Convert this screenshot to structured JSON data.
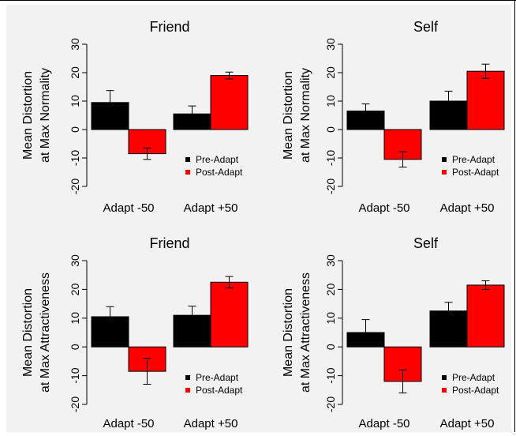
{
  "figure": {
    "background": "#f2f2f2",
    "colors": {
      "pre": "#000000",
      "post": "#ff0000"
    }
  },
  "chart_data": [
    {
      "type": "bar",
      "title": "Friend",
      "ylabel": [
        "Mean Distortion",
        "at Max Normality"
      ],
      "categories": [
        "Adapt -50",
        "Adapt +50"
      ],
      "ylim": [
        -20,
        30
      ],
      "yticks": [
        "-20",
        "-10",
        "0",
        "10",
        "20",
        "30"
      ],
      "legend": {
        "position": "bottom-right",
        "entries": [
          "Pre-Adapt",
          "Post-Adapt"
        ]
      },
      "series": [
        {
          "name": "Pre-Adapt",
          "values": [
            9.5,
            5.5
          ],
          "errors": [
            4.2,
            2.8
          ],
          "color": "#000000"
        },
        {
          "name": "Post-Adapt",
          "values": [
            -8.5,
            19.0
          ],
          "errors": [
            2.0,
            1.2
          ],
          "color": "#ff0000"
        }
      ]
    },
    {
      "type": "bar",
      "title": "Self",
      "ylabel": [
        "Mean Distortion",
        "at Max Normality"
      ],
      "categories": [
        "Adapt -50",
        "Adapt +50"
      ],
      "ylim": [
        -20,
        30
      ],
      "yticks": [
        "-20",
        "-10",
        "0",
        "10",
        "20",
        "30"
      ],
      "legend": {
        "position": "bottom-right",
        "entries": [
          "Pre-Adapt",
          "Post-Adapt"
        ]
      },
      "series": [
        {
          "name": "Pre-Adapt",
          "values": [
            6.5,
            10.0
          ],
          "errors": [
            2.5,
            3.5
          ],
          "color": "#000000"
        },
        {
          "name": "Post-Adapt",
          "values": [
            -10.5,
            20.5
          ],
          "errors": [
            2.7,
            2.5
          ],
          "color": "#ff0000"
        }
      ]
    },
    {
      "type": "bar",
      "title": "Friend",
      "ylabel": [
        "Mean Distortion",
        "at Max Attractiveness"
      ],
      "categories": [
        "Adapt -50",
        "Adapt +50"
      ],
      "ylim": [
        -20,
        30
      ],
      "yticks": [
        "-20",
        "-10",
        "0",
        "10",
        "20",
        "30"
      ],
      "legend": {
        "position": "bottom-right",
        "entries": [
          "Pre-Adapt",
          "Post-Adapt"
        ]
      },
      "series": [
        {
          "name": "Pre-Adapt",
          "values": [
            10.5,
            11.0
          ],
          "errors": [
            3.5,
            3.2
          ],
          "color": "#000000"
        },
        {
          "name": "Post-Adapt",
          "values": [
            -8.5,
            22.5
          ],
          "errors": [
            4.5,
            2.0
          ],
          "color": "#ff0000"
        }
      ]
    },
    {
      "type": "bar",
      "title": "Self",
      "ylabel": [
        "Mean Distortion",
        "at Max Attractiveness"
      ],
      "categories": [
        "Adapt -50",
        "Adapt +50"
      ],
      "ylim": [
        -20,
        30
      ],
      "yticks": [
        "-20",
        "-10",
        "0",
        "10",
        "20",
        "30"
      ],
      "legend": {
        "position": "bottom-right",
        "entries": [
          "Pre-Adapt",
          "Post-Adapt"
        ]
      },
      "series": [
        {
          "name": "Pre-Adapt",
          "values": [
            5.0,
            12.5
          ],
          "errors": [
            4.5,
            3.0
          ],
          "color": "#000000"
        },
        {
          "name": "Post-Adapt",
          "values": [
            -12.0,
            21.5
          ],
          "errors": [
            4.0,
            1.5
          ],
          "color": "#ff0000"
        }
      ]
    }
  ]
}
